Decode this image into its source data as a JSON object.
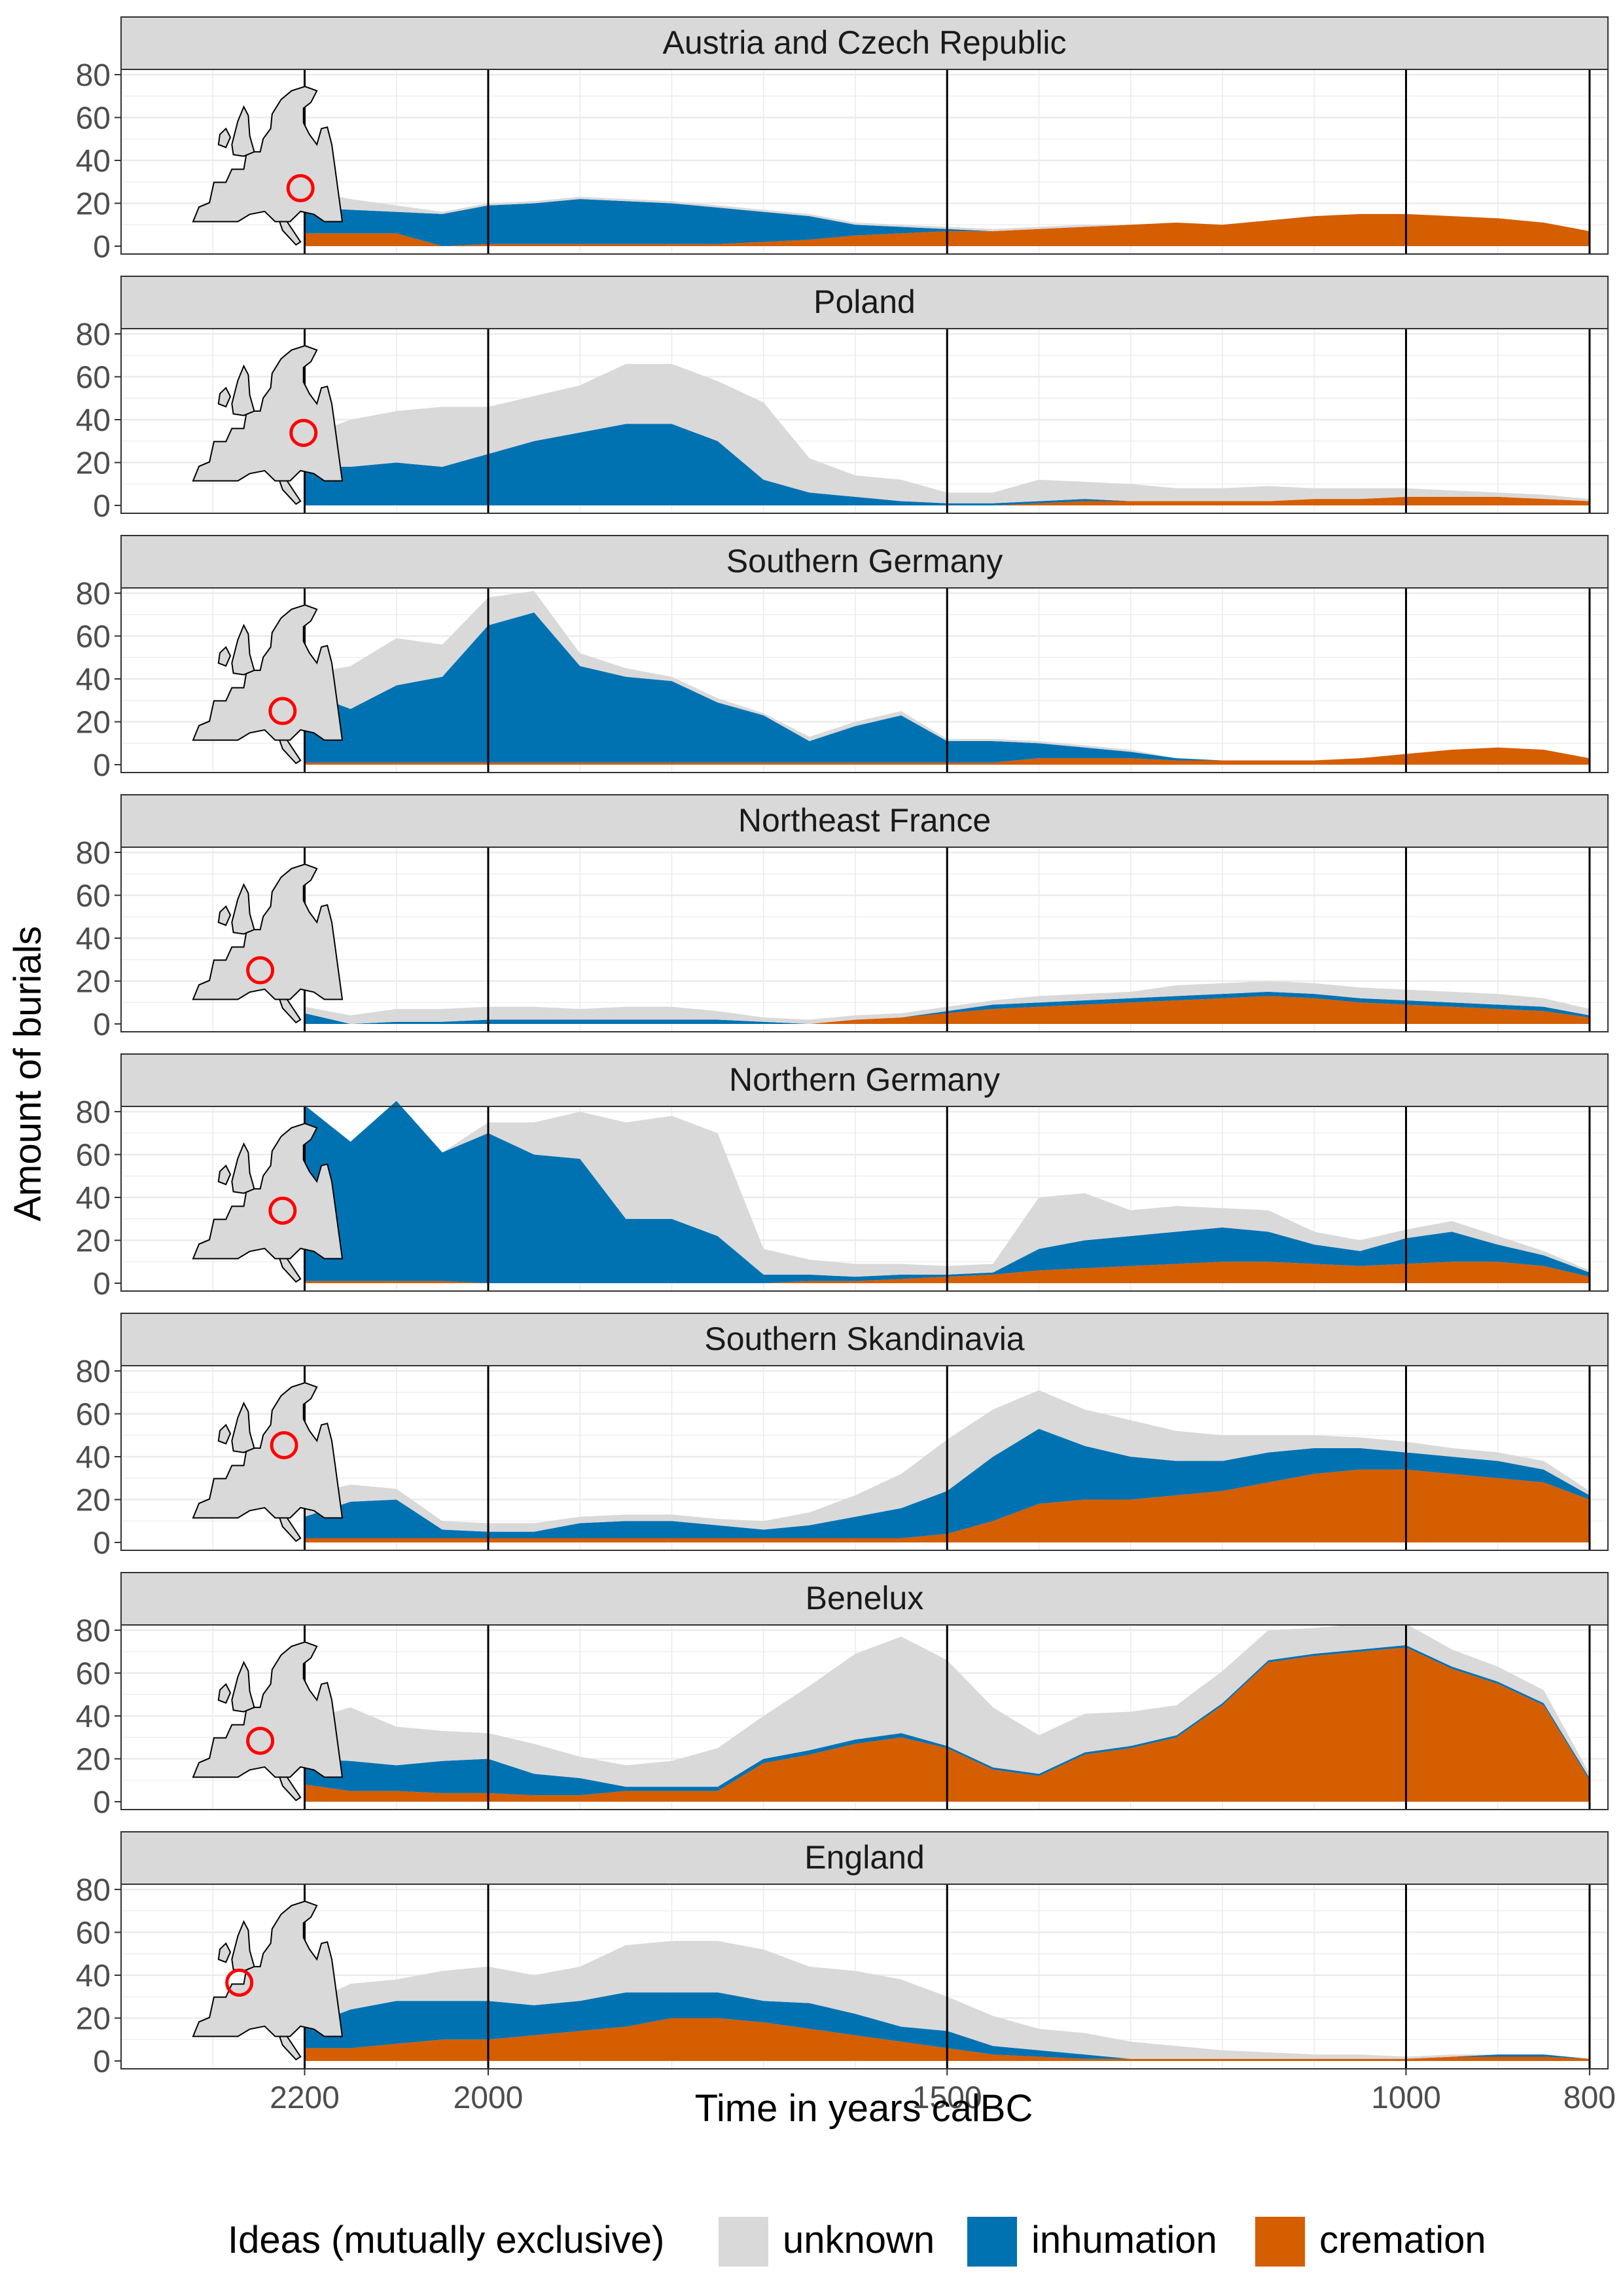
{
  "chart_data": {
    "type": "area",
    "stacked": true,
    "xlabel": "Time in years calBC",
    "ylabel": "Amount of burials",
    "x_reversed": true,
    "xlim": [
      2400,
      780
    ],
    "ylim": [
      0,
      80
    ],
    "x_ticks": [
      2200,
      2000,
      1500,
      1000,
      800
    ],
    "y_ticks": [
      0,
      20,
      40,
      60,
      80
    ],
    "vertical_reference_lines": [
      2200,
      2000,
      1500,
      1000,
      800
    ],
    "grid": true,
    "legend": {
      "position": "bottom",
      "title": "Ideas (mutually exclusive)",
      "entries": [
        {
          "name": "unknown",
          "color": "#d9d9d9"
        },
        {
          "name": "inhumation",
          "color": "#0072b2"
        },
        {
          "name": "cremation",
          "color": "#d55e00"
        }
      ]
    },
    "x": [
      2200,
      2150,
      2100,
      2050,
      2000,
      1950,
      1900,
      1850,
      1800,
      1750,
      1700,
      1650,
      1600,
      1550,
      1500,
      1450,
      1400,
      1350,
      1300,
      1250,
      1200,
      1150,
      1100,
      1050,
      1000,
      950,
      900,
      850,
      800
    ],
    "panels": [
      {
        "region": "Austria and Czech Republic",
        "series": [
          {
            "name": "cremation",
            "values": [
              6,
              6,
              6,
              0,
              1,
              1,
              1,
              1,
              1,
              1,
              2,
              3,
              5,
              6,
              7,
              7,
              8,
              9,
              10,
              11,
              10,
              12,
              14,
              15,
              15,
              14,
              13,
              11,
              7
            ]
          },
          {
            "name": "inhumation",
            "values": [
              12,
              11,
              10,
              15,
              18,
              19,
              21,
              20,
              19,
              17,
              14,
              11,
              5,
              3,
              1,
              0,
              0,
              0,
              0,
              0,
              0,
              0,
              0,
              0,
              0,
              0,
              0,
              0,
              0
            ]
          },
          {
            "name": "unknown",
            "values": [
              8,
              5,
              3,
              1,
              1,
              1,
              1,
              1,
              1,
              1,
              1,
              1,
              1,
              1,
              1,
              1,
              1,
              1,
              0,
              0,
              0,
              0,
              0,
              0,
              0,
              0,
              0,
              0,
              0
            ]
          }
        ],
        "map_marker": "central-east"
      },
      {
        "region": "Poland",
        "series": [
          {
            "name": "cremation",
            "values": [
              0,
              0,
              0,
              0,
              0,
              0,
              0,
              0,
              0,
              0,
              0,
              0,
              0,
              0,
              0,
              0,
              1,
              2,
              2,
              2,
              2,
              2,
              3,
              3,
              4,
              4,
              4,
              3,
              2
            ]
          },
          {
            "name": "inhumation",
            "values": [
              18,
              18,
              20,
              18,
              24,
              30,
              34,
              38,
              38,
              30,
              12,
              6,
              4,
              2,
              1,
              1,
              1,
              1,
              0,
              0,
              0,
              0,
              0,
              0,
              0,
              0,
              0,
              0,
              0
            ]
          },
          {
            "name": "unknown",
            "values": [
              14,
              22,
              24,
              28,
              22,
              21,
              22,
              28,
              28,
              28,
              36,
              16,
              10,
              10,
              5,
              5,
              10,
              8,
              8,
              6,
              6,
              7,
              5,
              5,
              4,
              3,
              2,
              2,
              1
            ]
          }
        ],
        "map_marker": "poland"
      },
      {
        "region": "Southern Germany",
        "series": [
          {
            "name": "cremation",
            "values": [
              1,
              1,
              1,
              1,
              1,
              1,
              1,
              1,
              1,
              1,
              1,
              1,
              1,
              1,
              1,
              1,
              3,
              3,
              3,
              2,
              2,
              2,
              2,
              3,
              5,
              7,
              8,
              7,
              3
            ]
          },
          {
            "name": "inhumation",
            "values": [
              33,
              25,
              36,
              40,
              64,
              70,
              45,
              40,
              38,
              28,
              22,
              10,
              17,
              22,
              10,
              10,
              7,
              5,
              3,
              1,
              0,
              0,
              0,
              0,
              0,
              0,
              0,
              0,
              0
            ]
          },
          {
            "name": "unknown",
            "values": [
              8,
              20,
              22,
              15,
              13,
              10,
              6,
              4,
              2,
              2,
              1,
              2,
              2,
              2,
              1,
              1,
              1,
              1,
              1,
              0,
              0,
              0,
              0,
              0,
              0,
              0,
              0,
              0,
              0
            ]
          }
        ],
        "map_marker": "south-germany"
      },
      {
        "region": "Northeast France",
        "series": [
          {
            "name": "cremation",
            "values": [
              0,
              0,
              0,
              0,
              0,
              0,
              0,
              0,
              0,
              0,
              0,
              0,
              2,
              3,
              5,
              7,
              8,
              9,
              10,
              11,
              12,
              13,
              12,
              10,
              9,
              8,
              7,
              6,
              3
            ]
          },
          {
            "name": "inhumation",
            "values": [
              5,
              0,
              1,
              1,
              2,
              2,
              2,
              2,
              2,
              2,
              1,
              0,
              0,
              0,
              1,
              2,
              2,
              2,
              2,
              2,
              2,
              2,
              2,
              2,
              2,
              2,
              2,
              2,
              1
            ]
          },
          {
            "name": "unknown",
            "values": [
              3,
              4,
              6,
              6,
              6,
              6,
              5,
              6,
              6,
              4,
              2,
              2,
              2,
              2,
              2,
              2,
              3,
              3,
              3,
              5,
              5,
              5,
              5,
              5,
              5,
              5,
              5,
              4,
              3
            ]
          }
        ],
        "map_marker": "northeast-france"
      },
      {
        "region": "Northern Germany",
        "series": [
          {
            "name": "cremation",
            "values": [
              1,
              1,
              1,
              1,
              0,
              0,
              0,
              0,
              0,
              0,
              0,
              1,
              1,
              2,
              3,
              4,
              6,
              7,
              8,
              9,
              10,
              10,
              9,
              8,
              9,
              10,
              10,
              8,
              3
            ]
          },
          {
            "name": "inhumation",
            "values": [
              82,
              65,
              84,
              60,
              70,
              60,
              58,
              30,
              30,
              22,
              4,
              3,
              2,
              2,
              1,
              1,
              10,
              13,
              14,
              15,
              16,
              14,
              9,
              7,
              12,
              14,
              8,
              5,
              2
            ]
          },
          {
            "name": "unknown",
            "values": [
              0,
              0,
              0,
              0,
              5,
              15,
              22,
              45,
              48,
              48,
              12,
              7,
              6,
              5,
              4,
              4,
              24,
              22,
              12,
              12,
              9,
              10,
              6,
              5,
              4,
              5,
              4,
              2,
              1
            ]
          }
        ],
        "map_marker": "north-germany"
      },
      {
        "region": "Southern Skandinavia",
        "series": [
          {
            "name": "cremation",
            "values": [
              2,
              2,
              2,
              2,
              2,
              2,
              2,
              2,
              2,
              2,
              2,
              2,
              2,
              2,
              4,
              10,
              18,
              20,
              20,
              22,
              24,
              28,
              32,
              34,
              34,
              32,
              30,
              28,
              20
            ]
          },
          {
            "name": "inhumation",
            "values": [
              10,
              17,
              18,
              4,
              3,
              3,
              7,
              8,
              8,
              6,
              4,
              6,
              10,
              14,
              20,
              30,
              35,
              25,
              20,
              16,
              14,
              14,
              12,
              10,
              8,
              8,
              8,
              6,
              2
            ]
          },
          {
            "name": "unknown",
            "values": [
              10,
              8,
              5,
              4,
              4,
              4,
              3,
              3,
              3,
              3,
              4,
              6,
              10,
              16,
              24,
              22,
              18,
              17,
              17,
              14,
              12,
              8,
              6,
              5,
              5,
              4,
              4,
              4,
              2
            ]
          }
        ],
        "map_marker": "denmark"
      },
      {
        "region": "Benelux",
        "series": [
          {
            "name": "cremation",
            "values": [
              8,
              5,
              5,
              4,
              4,
              3,
              3,
              5,
              5,
              5,
              18,
              22,
              27,
              30,
              25,
              15,
              12,
              22,
              25,
              30,
              45,
              65,
              68,
              70,
              72,
              62,
              55,
              45,
              10
            ]
          },
          {
            "name": "inhumation",
            "values": [
              12,
              14,
              12,
              15,
              16,
              10,
              8,
              2,
              2,
              2,
              2,
              2,
              2,
              2,
              1,
              1,
              1,
              1,
              1,
              1,
              1,
              1,
              1,
              1,
              1,
              1,
              1,
              1,
              1
            ]
          },
          {
            "name": "unknown",
            "values": [
              18,
              25,
              18,
              14,
              12,
              14,
              10,
              10,
              12,
              18,
              20,
              30,
              40,
              45,
              40,
              28,
              18,
              18,
              16,
              14,
              15,
              14,
              12,
              12,
              10,
              8,
              7,
              6,
              2
            ]
          }
        ],
        "map_marker": "benelux"
      },
      {
        "region": "England",
        "series": [
          {
            "name": "cremation",
            "values": [
              6,
              6,
              8,
              10,
              10,
              12,
              14,
              16,
              20,
              20,
              18,
              15,
              12,
              9,
              6,
              3,
              2,
              1,
              1,
              1,
              1,
              1,
              1,
              1,
              1,
              2,
              2,
              2,
              1
            ]
          },
          {
            "name": "inhumation",
            "values": [
              10,
              18,
              20,
              18,
              18,
              14,
              14,
              16,
              12,
              12,
              10,
              12,
              10,
              7,
              8,
              4,
              3,
              2,
              0,
              0,
              0,
              0,
              0,
              0,
              0,
              0,
              1,
              1,
              0
            ]
          },
          {
            "name": "unknown",
            "values": [
              10,
              12,
              10,
              14,
              16,
              14,
              16,
              22,
              24,
              24,
              24,
              17,
              20,
              22,
              16,
              14,
              10,
              10,
              8,
              6,
              4,
              3,
              2,
              2,
              1,
              1,
              0,
              0,
              0
            ]
          }
        ],
        "map_marker": "england"
      }
    ]
  }
}
